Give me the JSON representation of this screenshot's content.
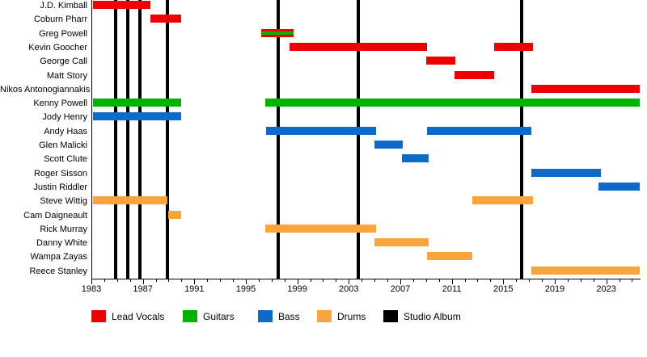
{
  "chart_data": {
    "type": "timeline",
    "description": "Band members timeline with studio album release lines",
    "x_axis": {
      "min": 1983,
      "max": 2025.6,
      "major_tick_labels": [
        "1983",
        "1987",
        "1991",
        "1995",
        "1999",
        "2003",
        "2007",
        "2011",
        "2015",
        "2019",
        "2023"
      ],
      "major_tick_years": [
        1983,
        1987,
        1991,
        1995,
        1999,
        2003,
        2007,
        2011,
        2015,
        2019,
        2023
      ],
      "minor_tick_interval": 1
    },
    "role_colors": {
      "lead_vocals": "#ef0000",
      "guitars": "#00b200",
      "bass": "#0e6ac8",
      "drums": "#faa53c",
      "studio_album": "#000000"
    },
    "legend": [
      {
        "id": "lead_vocals",
        "label": "Lead Vocals",
        "color": "#ef0000"
      },
      {
        "id": "guitars",
        "label": "Guitars",
        "color": "#00b200"
      },
      {
        "id": "bass",
        "label": "Bass",
        "color": "#0e6ac8"
      },
      {
        "id": "drums",
        "label": "Drums",
        "color": "#faa53c"
      },
      {
        "id": "studio_album",
        "label": "Studio Album",
        "color": "#000000"
      }
    ],
    "studio_album_years": [
      1984.9,
      1985.8,
      1986.8,
      1988.9,
      1997.5,
      2003.75,
      2016.4
    ],
    "members": [
      {
        "name": "J.D. Kimball",
        "segments": [
          {
            "start": 1983.1,
            "end": 1987.6,
            "roles": [
              "lead_vocals"
            ]
          }
        ]
      },
      {
        "name": "Coburn Pharr",
        "segments": [
          {
            "start": 1987.6,
            "end": 1990.0,
            "roles": [
              "lead_vocals"
            ]
          }
        ]
      },
      {
        "name": "Greg Powell",
        "segments": [
          {
            "start": 1996.2,
            "end": 1998.7,
            "roles": [
              "lead_vocals",
              "guitars"
            ]
          }
        ]
      },
      {
        "name": "Kevin Goocher",
        "segments": [
          {
            "start": 1998.4,
            "end": 2009.1,
            "roles": [
              "lead_vocals"
            ]
          },
          {
            "start": 2014.3,
            "end": 2017.3,
            "roles": [
              "lead_vocals"
            ]
          }
        ]
      },
      {
        "name": "George Call",
        "segments": [
          {
            "start": 2009.0,
            "end": 2011.3,
            "roles": [
              "lead_vocals"
            ]
          }
        ]
      },
      {
        "name": "Matt Story",
        "segments": [
          {
            "start": 2011.2,
            "end": 2014.3,
            "roles": [
              "lead_vocals"
            ]
          }
        ]
      },
      {
        "name": "Nikos Antonogiannakis",
        "segments": [
          {
            "start": 2017.2,
            "end": 2025.6,
            "roles": [
              "lead_vocals"
            ]
          }
        ]
      },
      {
        "name": "Kenny Powell",
        "segments": [
          {
            "start": 1983.1,
            "end": 1990.0,
            "roles": [
              "guitars"
            ]
          },
          {
            "start": 1996.5,
            "end": 2025.6,
            "roles": [
              "guitars"
            ]
          }
        ]
      },
      {
        "name": "Jody Henry",
        "segments": [
          {
            "start": 1983.1,
            "end": 1990.0,
            "roles": [
              "bass"
            ]
          }
        ]
      },
      {
        "name": "Andy Haas",
        "segments": [
          {
            "start": 1996.6,
            "end": 2005.1,
            "roles": [
              "bass"
            ]
          },
          {
            "start": 2009.1,
            "end": 2017.2,
            "roles": [
              "bass"
            ]
          }
        ]
      },
      {
        "name": "Glen Malicki",
        "segments": [
          {
            "start": 2005.0,
            "end": 2007.2,
            "roles": [
              "bass"
            ]
          }
        ]
      },
      {
        "name": "Scott Clute",
        "segments": [
          {
            "start": 2007.1,
            "end": 2009.2,
            "roles": [
              "bass"
            ]
          }
        ]
      },
      {
        "name": "Roger Sisson",
        "segments": [
          {
            "start": 2017.2,
            "end": 2022.6,
            "roles": [
              "bass"
            ]
          }
        ]
      },
      {
        "name": "Justin Riddler",
        "segments": [
          {
            "start": 2022.4,
            "end": 2025.6,
            "roles": [
              "bass"
            ]
          }
        ]
      },
      {
        "name": "Steve Wittig",
        "segments": [
          {
            "start": 1983.1,
            "end": 1988.9,
            "roles": [
              "drums"
            ]
          },
          {
            "start": 2012.6,
            "end": 2017.3,
            "roles": [
              "drums"
            ]
          }
        ]
      },
      {
        "name": "Cam Daigneault",
        "segments": [
          {
            "start": 1989.0,
            "end": 1990.0,
            "roles": [
              "drums"
            ]
          }
        ]
      },
      {
        "name": "Rick Murray",
        "segments": [
          {
            "start": 1996.5,
            "end": 2005.1,
            "roles": [
              "drums"
            ]
          }
        ]
      },
      {
        "name": "Danny White",
        "segments": [
          {
            "start": 2005.0,
            "end": 2009.2,
            "roles": [
              "drums"
            ]
          }
        ]
      },
      {
        "name": "Wampa Zayas",
        "segments": [
          {
            "start": 2009.1,
            "end": 2012.6,
            "roles": [
              "drums"
            ]
          }
        ]
      },
      {
        "name": "Reece Stanley",
        "segments": [
          {
            "start": 2017.2,
            "end": 2025.6,
            "roles": [
              "drums"
            ]
          }
        ]
      }
    ]
  }
}
